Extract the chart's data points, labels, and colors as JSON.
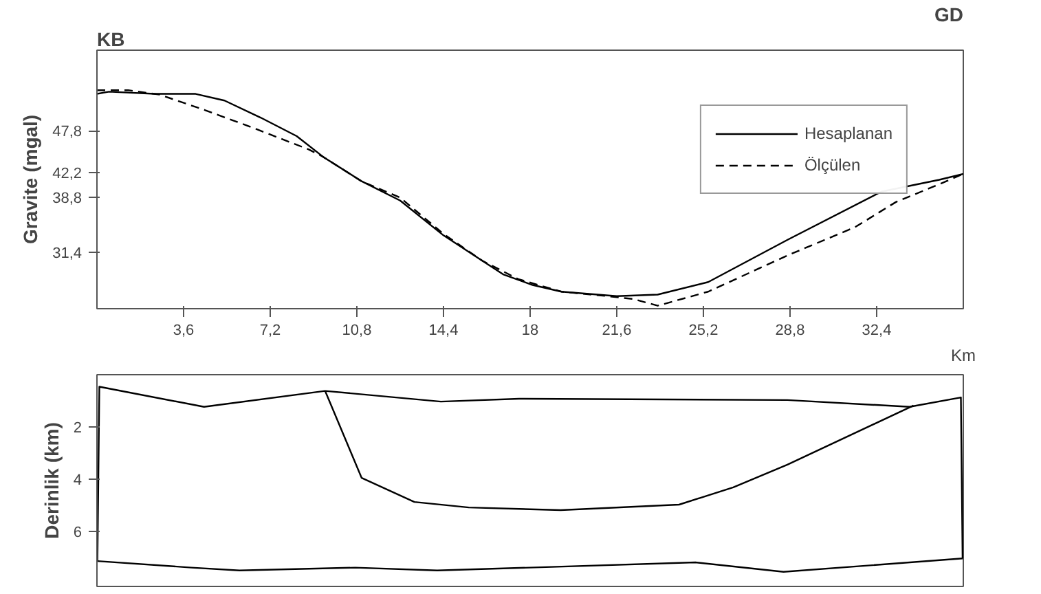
{
  "chart_data": [
    {
      "type": "line",
      "xlabel": "Km",
      "ylabel": "Gravite (mgal)",
      "annotations": [
        "KB",
        "GD"
      ],
      "legend": "top right",
      "grid": false,
      "xlim": [
        0,
        36
      ],
      "ylim": [
        23.8,
        58.7
      ],
      "xticks": [
        {
          "value": 3.6,
          "label": "3,6"
        },
        {
          "value": 7.2,
          "label": "7,2"
        },
        {
          "value": 10.8,
          "label": "10,8"
        },
        {
          "value": 14.4,
          "label": "14,4"
        },
        {
          "value": 18,
          "label": "18"
        },
        {
          "value": 21.6,
          "label": "21,6"
        },
        {
          "value": 25.2,
          "label": "25,2"
        },
        {
          "value": 28.8,
          "label": "28,8"
        },
        {
          "value": 32.4,
          "label": "32,4"
        }
      ],
      "yticks": [
        {
          "value": 31.4,
          "label": "31,4"
        },
        {
          "value": 38.8,
          "label": "38,8"
        },
        {
          "value": 42.2,
          "label": "42,2"
        },
        {
          "value": 47.8,
          "label": "47,8"
        }
      ],
      "series": [
        {
          "name": "Hesaplanan",
          "color": "#000000",
          "line_style": "solid",
          "x": [
            0,
            0.5,
            2.4,
            4.1,
            5.3,
            6.8,
            8.3,
            9.4,
            11.0,
            12.6,
            14.4,
            16.0,
            16.9,
            18.1,
            19.3,
            21.6,
            23.3,
            25.4,
            28.7,
            32.6,
            35.0,
            36.0
          ],
          "values": [
            52.8,
            53.1,
            52.8,
            52.8,
            51.9,
            49.6,
            47.1,
            44.3,
            41.0,
            38.4,
            33.7,
            30.3,
            28.4,
            27.0,
            26.1,
            25.5,
            25.7,
            27.4,
            33.1,
            39.6,
            41.2,
            42.0
          ]
        },
        {
          "name": "Ölçülen",
          "color": "#000000",
          "line_style": "dashed",
          "x": [
            0,
            1.3,
            2.6,
            4.5,
            6.5,
            8.8,
            9.4,
            11.0,
            12.6,
            14.4,
            16.0,
            17.5,
            19.3,
            21.2,
            22.3,
            23.3,
            25.4,
            28.7,
            31.5,
            33.2,
            35.0,
            36.0
          ],
          "values": [
            53.3,
            53.3,
            52.7,
            50.6,
            48.2,
            45.3,
            44.3,
            41.0,
            38.8,
            33.9,
            30.3,
            27.8,
            26.1,
            25.5,
            25.1,
            24.2,
            26.1,
            31.0,
            34.8,
            38.2,
            40.6,
            42.0
          ]
        }
      ]
    },
    {
      "type": "line",
      "ylabel": "Derinlik (km)",
      "grid": false,
      "tick_labels": "y",
      "xlim": [
        0,
        36
      ],
      "ylim": [
        8.1,
        0
      ],
      "yticks": [
        2,
        4,
        6
      ],
      "series": [
        {
          "color": "#000000",
          "line_style": "solid",
          "x": [
            0.02,
            0.1,
            4.45,
            9.48,
            14.29,
            17.54,
            28.69,
            33.77,
            35.9,
            35.97
          ],
          "values": [
            7.13,
            0.46,
            1.23,
            0.62,
            1.03,
            0.92,
            0.97,
            1.23,
            0.87,
            7.03
          ]
        },
        {
          "color": "#000000",
          "line_style": "solid",
          "x": [
            0.02,
            3.93,
            5.92,
            10.73,
            14.14,
            24.87,
            28.53,
            35.97
          ],
          "values": [
            7.13,
            7.38,
            7.49,
            7.38,
            7.49,
            7.18,
            7.54,
            7.03
          ]
        },
        {
          "color": "#000000",
          "line_style": "solid",
          "x": [
            9.48,
            11.0,
            13.19,
            15.45,
            19.27,
            24.19,
            26.44,
            28.69,
            33.93
          ],
          "values": [
            0.62,
            3.95,
            4.87,
            5.08,
            5.18,
            4.97,
            4.31,
            3.44,
            1.18
          ]
        }
      ]
    }
  ]
}
